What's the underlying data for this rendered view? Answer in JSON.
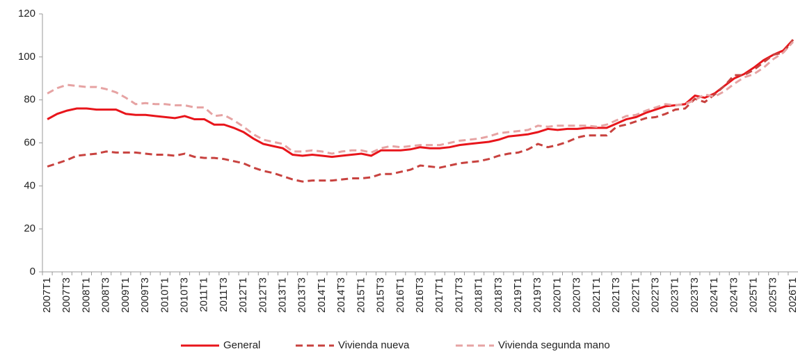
{
  "chart_data": {
    "type": "line",
    "categories": [
      "2007T1",
      null,
      "2007T3",
      null,
      "2008T1",
      null,
      "2008T3",
      null,
      "2009T1",
      null,
      "2009T3",
      null,
      "2010T1",
      null,
      "2010T3",
      null,
      "2011T1",
      null,
      "2011T3",
      null,
      "2012T1",
      null,
      "2012T3",
      null,
      "2013T1",
      null,
      "2013T3",
      null,
      "2014T1",
      null,
      "2014T3",
      null,
      "2015T1",
      null,
      "2015T3",
      null,
      "2016T1",
      null,
      "2016T3",
      null,
      "2017T1",
      null,
      "2017T3",
      null,
      "2018T1",
      null,
      "2018T3",
      null,
      "2019T1",
      null,
      "2019T3",
      null,
      "2020T1",
      null,
      "2020T3",
      null,
      "2021T1",
      null,
      "2021T3",
      null,
      "2022T1",
      null,
      "2022T3",
      null,
      "2023T1",
      null,
      "2023T3",
      null,
      "2024T1",
      null,
      "2024T3",
      null,
      "2025T1",
      null,
      "2025T3",
      null,
      "2026T1"
    ],
    "series": [
      {
        "name": "General",
        "color": "#e8151b",
        "dash": "solid",
        "values": [
          71,
          73.5,
          75,
          76,
          76,
          75.5,
          75.5,
          75.5,
          73.5,
          73,
          73,
          72.5,
          72,
          71.5,
          72.5,
          71,
          71,
          68.5,
          68.5,
          67,
          65,
          62,
          59.5,
          58.5,
          57.5,
          54.5,
          54,
          54.5,
          54,
          53.5,
          54,
          54.5,
          55,
          54,
          56.5,
          56.5,
          56.5,
          57,
          58,
          57.5,
          57.5,
          58,
          59,
          59.5,
          60,
          60.5,
          61.5,
          63,
          63.5,
          64,
          65,
          66.5,
          66,
          66.5,
          66.5,
          67,
          67,
          67,
          69,
          71,
          72,
          74,
          75.5,
          77,
          77.5,
          78,
          82,
          81,
          83,
          86.5,
          90,
          92,
          95,
          98.5,
          101,
          103,
          108
        ]
      },
      {
        "name": "Vivienda nueva",
        "color": "#c8423f",
        "dash": "dashed",
        "values": [
          49,
          50.5,
          52,
          54,
          54.5,
          55,
          56,
          55.5,
          55.5,
          55.5,
          55,
          54.5,
          54.5,
          54,
          55,
          53.5,
          53,
          53,
          52.5,
          51.5,
          50.5,
          48.5,
          47,
          46,
          44.5,
          43,
          42,
          42.5,
          42.5,
          42.5,
          43,
          43.5,
          43.5,
          44,
          45.5,
          45.5,
          46.5,
          47.5,
          49.5,
          49,
          48.5,
          49.5,
          50.5,
          51,
          51.5,
          52.5,
          54,
          55,
          55.5,
          57,
          59.5,
          58,
          59,
          60.5,
          62.5,
          63.5,
          63.5,
          63.5,
          67.5,
          68.5,
          70,
          71.5,
          72,
          73.5,
          75.5,
          76,
          80.5,
          79,
          82.5,
          86.5,
          91.5,
          91.5,
          94,
          97.5,
          101,
          102,
          108
        ]
      },
      {
        "name": "Vivienda segunda mano",
        "color": "#e6a3a3",
        "dash": "dashed",
        "values": [
          83,
          85.5,
          87,
          86.5,
          86,
          86,
          85,
          83.5,
          81,
          78,
          78.5,
          78,
          78,
          77.5,
          77.5,
          76.5,
          76.5,
          72.5,
          73,
          70.5,
          67.5,
          64,
          61.5,
          60.5,
          59.5,
          56,
          56,
          56.5,
          56,
          55,
          56,
          56.5,
          56.5,
          55.5,
          57.5,
          58.5,
          58,
          58.5,
          59,
          59,
          59,
          60,
          61,
          61.5,
          62,
          63,
          64.5,
          65,
          65.5,
          66,
          68,
          67.5,
          68,
          68,
          68,
          68,
          67.5,
          68.5,
          70.5,
          72.5,
          73,
          75,
          76.5,
          78,
          77.5,
          78,
          80,
          82.5,
          81.5,
          84,
          87.5,
          90.5,
          92,
          95,
          99,
          102,
          107
        ]
      }
    ],
    "ylim": [
      0,
      120
    ],
    "yticks": [
      0,
      20,
      40,
      60,
      80,
      100,
      120
    ],
    "grid": false,
    "legend": "bottom"
  }
}
